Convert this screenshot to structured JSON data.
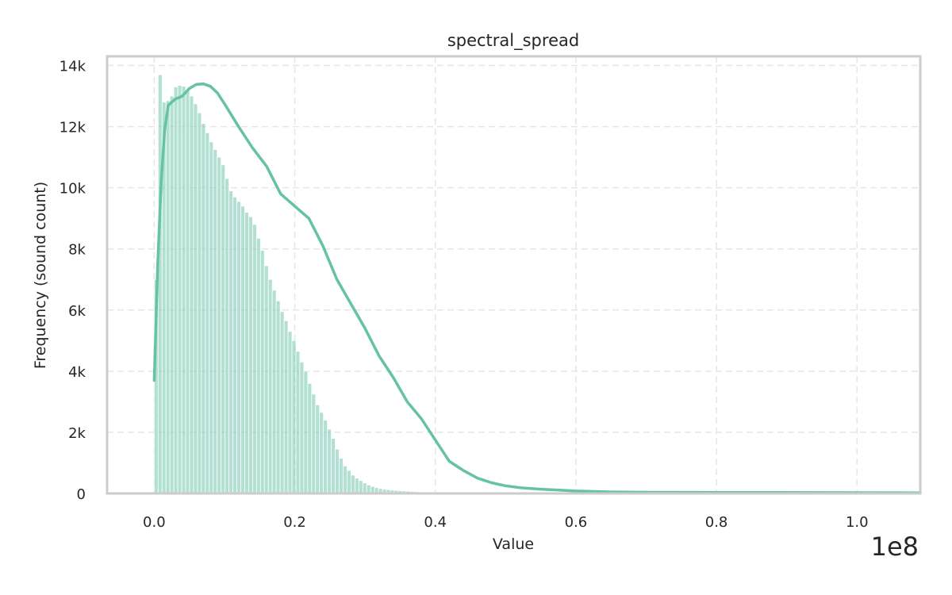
{
  "chart_data": {
    "type": "bar",
    "title": "spectral_spread",
    "xlabel": "Value",
    "ylabel": "Frequency (sound count)",
    "x_offset_label": "1e8",
    "xlim": [
      -0.067,
      1.09
    ],
    "ylim": [
      0,
      14300
    ],
    "x_ticks": [
      0.0,
      0.2,
      0.4,
      0.6,
      0.8,
      1.0
    ],
    "x_tick_labels": [
      "0.0",
      "0.2",
      "0.4",
      "0.6",
      "0.8",
      "1.0"
    ],
    "y_ticks": [
      0,
      2000,
      4000,
      6000,
      8000,
      10000,
      12000,
      14000
    ],
    "y_tick_labels": [
      "0",
      "2k",
      "4k",
      "6k",
      "8k",
      "10k",
      "12k",
      "14k"
    ],
    "grid": true,
    "colors": {
      "bar": "#66c2a5",
      "kde": "#66c2a5",
      "frame": "#cccccc",
      "grid": "#e6e6e6"
    },
    "bin_start": 0.0,
    "bin_width": 0.0056,
    "values": [
      7000,
      13700,
      12800,
      12850,
      13000,
      13300,
      13350,
      13320,
      13200,
      13000,
      12750,
      12450,
      12100,
      11800,
      11500,
      11250,
      11000,
      10750,
      10300,
      9900,
      9700,
      9550,
      9400,
      9200,
      9050,
      8800,
      8350,
      7950,
      7450,
      7000,
      6650,
      6300,
      5950,
      5650,
      5300,
      5000,
      4650,
      4300,
      4000,
      3600,
      3250,
      2900,
      2650,
      2400,
      2100,
      1800,
      1450,
      1150,
      900,
      750,
      600,
      500,
      420,
      340,
      280,
      230,
      190,
      160,
      140,
      125,
      110,
      100,
      90,
      80,
      72,
      64,
      58,
      52,
      48,
      44,
      40,
      37,
      34,
      32,
      30,
      28,
      26,
      25,
      24,
      23,
      22,
      21,
      20,
      20,
      19,
      19,
      18,
      18,
      17,
      17,
      16,
      16,
      15,
      15,
      15,
      14,
      14,
      14,
      13,
      13,
      13,
      12,
      12,
      12,
      12,
      11,
      11,
      11,
      11,
      10,
      10,
      10,
      10,
      10,
      10,
      10,
      10,
      10,
      10,
      10,
      10,
      10,
      10,
      10,
      10,
      10,
      10,
      10,
      10,
      10,
      10,
      10,
      10,
      10,
      10,
      10,
      10,
      10,
      10,
      10,
      10,
      10,
      10,
      10,
      10,
      10,
      10,
      10,
      10,
      10,
      10,
      10,
      10,
      10,
      10,
      10,
      10,
      10,
      10,
      10,
      10,
      10,
      10,
      10,
      10,
      10,
      10,
      10,
      10,
      10,
      10,
      10,
      10,
      10,
      10,
      10,
      10,
      10,
      10,
      10,
      10,
      10,
      10,
      10,
      10,
      10,
      10,
      10,
      10,
      10,
      10,
      10,
      10
    ],
    "kde_x": [
      0.0,
      0.005,
      0.01,
      0.015,
      0.02,
      0.03,
      0.04,
      0.05,
      0.06,
      0.07,
      0.08,
      0.09,
      0.1,
      0.12,
      0.14,
      0.16,
      0.18,
      0.2,
      0.22,
      0.24,
      0.26,
      0.28,
      0.3,
      0.32,
      0.34,
      0.36,
      0.38,
      0.4,
      0.42,
      0.44,
      0.46,
      0.48,
      0.5,
      0.52,
      0.55,
      0.6,
      0.65,
      0.7,
      0.8,
      0.9,
      1.0,
      1.09
    ],
    "kde_y": [
      3700,
      7500,
      10200,
      11900,
      12700,
      12900,
      13000,
      13250,
      13380,
      13400,
      13320,
      13100,
      12750,
      12000,
      11300,
      10700,
      9800,
      9400,
      9000,
      8100,
      7000,
      6200,
      5400,
      4500,
      3800,
      3000,
      2450,
      1750,
      1050,
      750,
      500,
      350,
      250,
      190,
      140,
      80,
      50,
      40,
      35,
      30,
      25,
      20
    ]
  }
}
